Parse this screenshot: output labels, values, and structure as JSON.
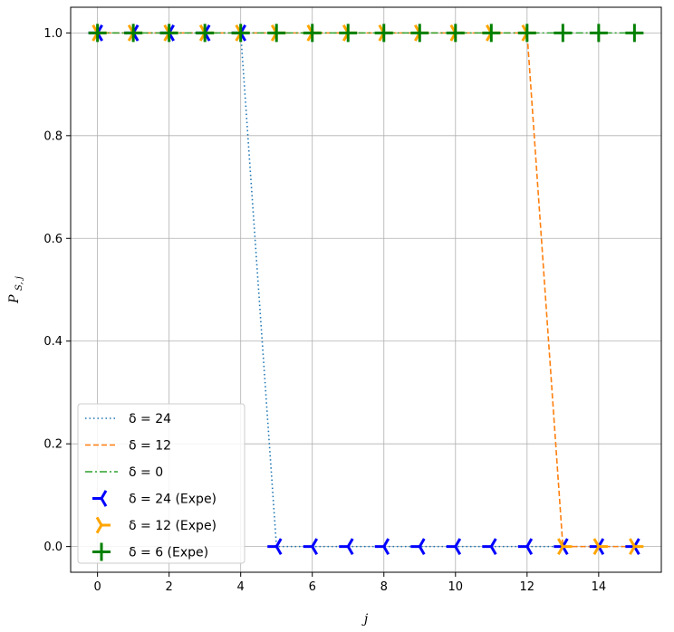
{
  "chart_data": {
    "type": "line",
    "xlabel": "j",
    "ylabel_main": "P",
    "ylabel_sub": "S, j",
    "xlim": [
      -0.75,
      15.75
    ],
    "ylim": [
      -0.05,
      1.05
    ],
    "xticks": [
      0,
      2,
      4,
      6,
      8,
      10,
      12,
      14
    ],
    "yticks": [
      0.0,
      0.2,
      0.4,
      0.6,
      0.8,
      1.0
    ],
    "xtick_labels": [
      "0",
      "2",
      "4",
      "6",
      "8",
      "10",
      "12",
      "14"
    ],
    "ytick_labels": [
      "0.0",
      "0.2",
      "0.4",
      "0.6",
      "0.8",
      "1.0"
    ],
    "grid": true,
    "legend_position": "lower-left",
    "x": [
      0,
      1,
      2,
      3,
      4,
      5,
      6,
      7,
      8,
      9,
      10,
      11,
      12,
      13,
      14,
      15
    ],
    "series": [
      {
        "name": "δ = 24",
        "kind": "line",
        "style": "dotted",
        "color": "#1f77b4",
        "values": [
          1,
          1,
          1,
          1,
          1,
          0,
          0,
          0,
          0,
          0,
          0,
          0,
          0,
          0,
          0,
          0
        ]
      },
      {
        "name": "δ = 12",
        "kind": "line",
        "style": "dashed",
        "color": "#ff7f0e",
        "values": [
          1,
          1,
          1,
          1,
          1,
          1,
          1,
          1,
          1,
          1,
          1,
          1,
          1,
          0,
          0,
          0
        ]
      },
      {
        "name": "δ = 0",
        "kind": "line",
        "style": "dashdot",
        "color": "#2ca02c",
        "values": [
          1,
          1,
          1,
          1,
          1,
          1,
          1,
          1,
          1,
          1,
          1,
          1,
          1,
          1,
          1,
          1
        ]
      },
      {
        "name": "δ = 24 (Expe)",
        "kind": "marker",
        "marker": "tri-left",
        "color": "#0000ff",
        "values": [
          1,
          1,
          1,
          1,
          1,
          0,
          0,
          0,
          0,
          0,
          0,
          0,
          0,
          0,
          0,
          0
        ]
      },
      {
        "name": "δ = 12 (Expe)",
        "kind": "marker",
        "marker": "tri-right",
        "color": "#ffa500",
        "values": [
          1,
          1,
          1,
          1,
          1,
          1,
          1,
          1,
          1,
          1,
          1,
          1,
          1,
          0,
          0,
          0
        ]
      },
      {
        "name": "δ = 6 (Expe)",
        "kind": "marker",
        "marker": "plus",
        "color": "#008000",
        "values": [
          1,
          1,
          1,
          1,
          1,
          1,
          1,
          1,
          1,
          1,
          1,
          1,
          1,
          1,
          1,
          1
        ]
      }
    ]
  }
}
